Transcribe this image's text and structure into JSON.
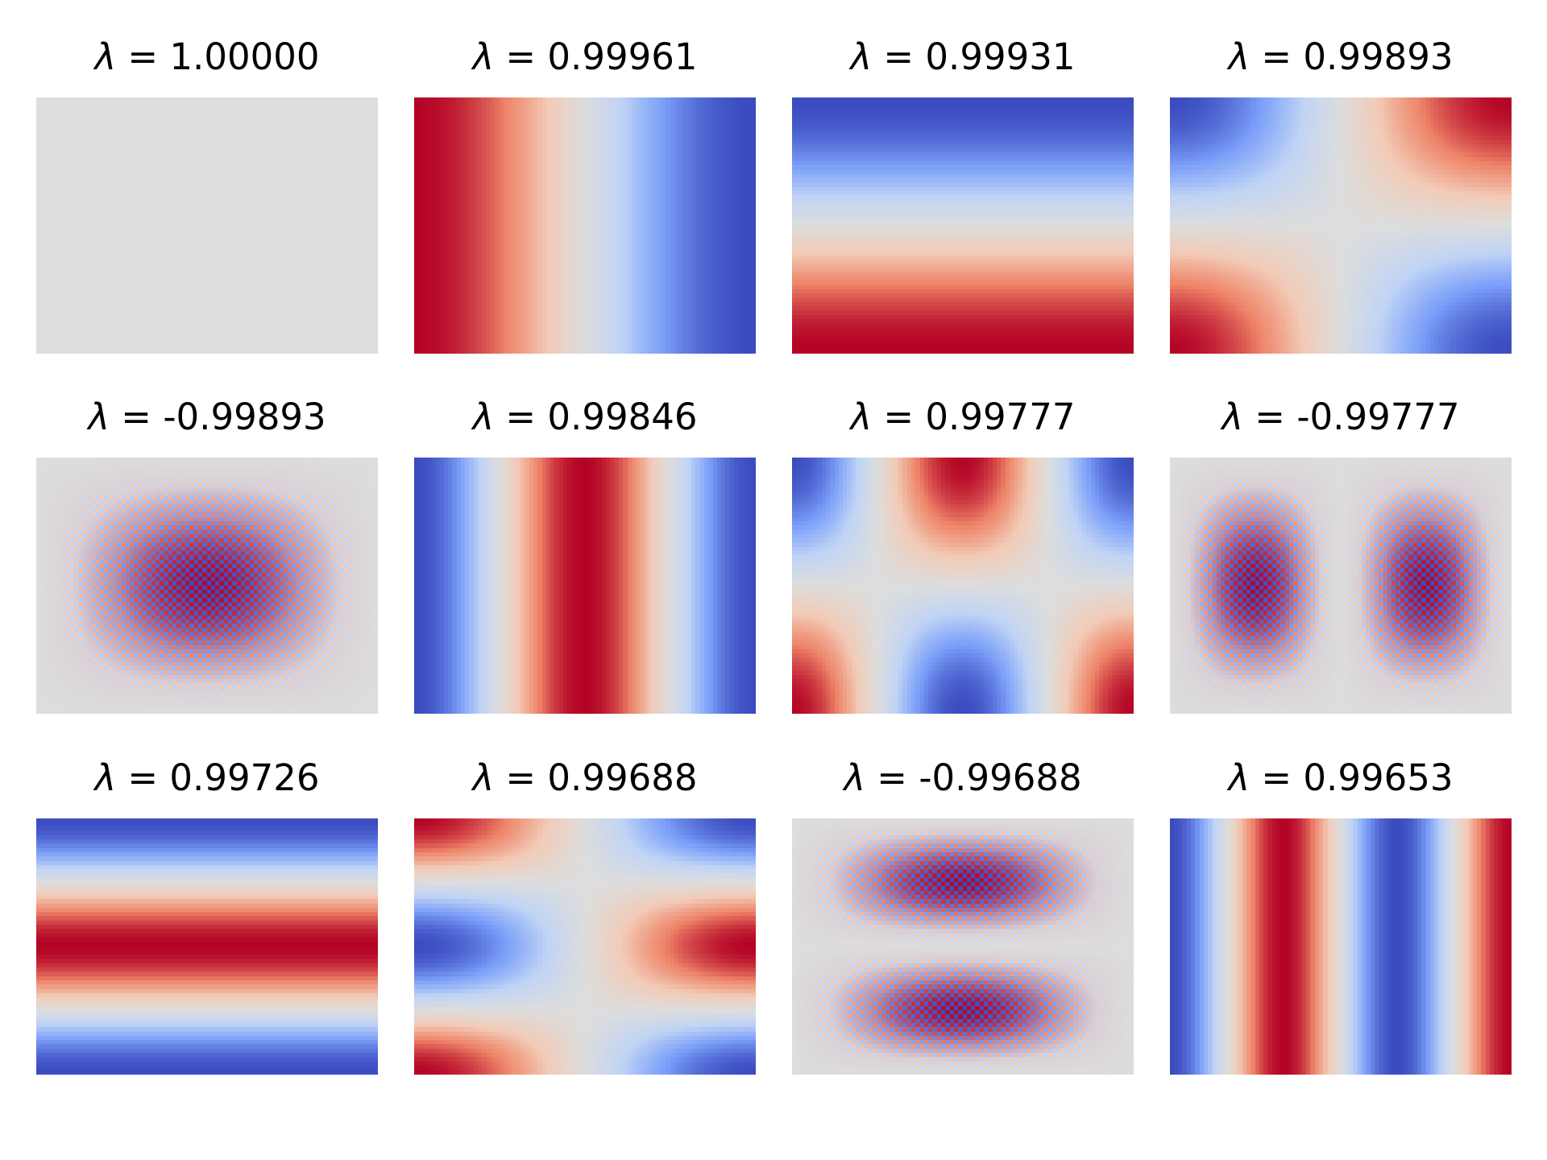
{
  "chart_data": {
    "type": "heatmap",
    "title": "",
    "layout": {
      "rows": 3,
      "cols": 4,
      "grid": false,
      "axes": "off",
      "colorbar": false
    },
    "colormap": "coolwarm",
    "colormap_stops": [
      "#3b4cc0",
      "#7b9ff9",
      "#c0d4f5",
      "#dddddd",
      "#f2cbb7",
      "#ee8468",
      "#b40426"
    ],
    "grid_resolution": {
      "nx": 80,
      "ny": 60
    },
    "symbol": "λ",
    "panels": [
      {
        "label": "λ = 1.00000",
        "eigenvalue": 1.0,
        "kx": 0,
        "ky": 0,
        "sign": 1,
        "basis": "cos",
        "checker": false
      },
      {
        "label": "λ = 0.99961",
        "eigenvalue": 0.99961,
        "kx": 1,
        "ky": 0,
        "sign": 1,
        "basis": "cos",
        "checker": false
      },
      {
        "label": "λ = 0.99931",
        "eigenvalue": 0.99931,
        "kx": 0,
        "ky": 1,
        "sign": -1,
        "basis": "cos",
        "checker": false
      },
      {
        "label": "λ = 0.99893",
        "eigenvalue": 0.99893,
        "kx": 1,
        "ky": 1,
        "sign": -1,
        "basis": "cos",
        "checker": false
      },
      {
        "label": "λ = -0.99893",
        "eigenvalue": -0.99893,
        "kx": 1,
        "ky": 1,
        "sign": 1,
        "basis": "sin",
        "checker": true
      },
      {
        "label": "λ = 0.99846",
        "eigenvalue": 0.99846,
        "kx": 2,
        "ky": 0,
        "sign": -1,
        "basis": "cos",
        "checker": false
      },
      {
        "label": "λ = 0.99777",
        "eigenvalue": 0.99777,
        "kx": 2,
        "ky": 1,
        "sign": -1,
        "basis": "cos",
        "checker": false
      },
      {
        "label": "λ = -0.99777",
        "eigenvalue": -0.99777,
        "kx": 2,
        "ky": 1,
        "sign": 1,
        "basis": "sin",
        "checker": true
      },
      {
        "label": "λ = 0.99726",
        "eigenvalue": 0.99726,
        "kx": 0,
        "ky": 2,
        "sign": -1,
        "basis": "cos",
        "checker": false
      },
      {
        "label": "λ = 0.99688",
        "eigenvalue": 0.99688,
        "kx": 1,
        "ky": 2,
        "sign": 1,
        "basis": "cos",
        "checker": false
      },
      {
        "label": "λ = -0.99688",
        "eigenvalue": -0.99688,
        "kx": 1,
        "ky": 2,
        "sign": 1,
        "basis": "sin",
        "checker": true
      },
      {
        "label": "λ = 0.99653",
        "eigenvalue": 0.99653,
        "kx": 3,
        "ky": 0,
        "sign": -1,
        "basis": "cos",
        "checker": false
      }
    ]
  },
  "titles": {
    "p0": {
      "sym": "λ",
      "rest": " = 1.00000"
    },
    "p1": {
      "sym": "λ",
      "rest": " = 0.99961"
    },
    "p2": {
      "sym": "λ",
      "rest": " = 0.99931"
    },
    "p3": {
      "sym": "λ",
      "rest": " = 0.99893"
    },
    "p4": {
      "sym": "λ",
      "rest": " = -0.99893"
    },
    "p5": {
      "sym": "λ",
      "rest": " = 0.99846"
    },
    "p6": {
      "sym": "λ",
      "rest": " = 0.99777"
    },
    "p7": {
      "sym": "λ",
      "rest": " = -0.99777"
    },
    "p8": {
      "sym": "λ",
      "rest": " = 0.99726"
    },
    "p9": {
      "sym": "λ",
      "rest": " = 0.99688"
    },
    "p10": {
      "sym": "λ",
      "rest": " = -0.99688"
    },
    "p11": {
      "sym": "λ",
      "rest": " = 0.99653"
    }
  }
}
